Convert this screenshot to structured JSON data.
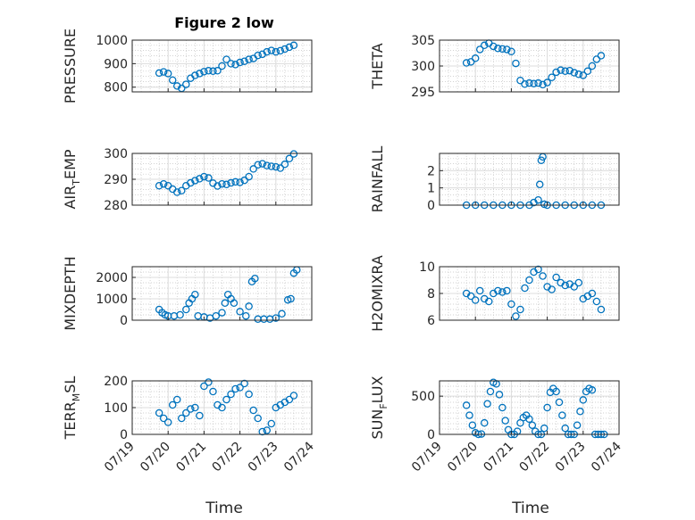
{
  "figure": {
    "title": "Figure 2 low",
    "xlabel": "Time"
  },
  "style": {
    "marker_color": "#0072bd",
    "axis_color": "#262626",
    "grid_color": "#dcdcdc"
  },
  "chart_data": [
    {
      "type": "scatter",
      "ylabel": "PRESSURE",
      "title": "Figure 2 low",
      "xlim": [
        "07/19",
        "07/24"
      ],
      "ylim": [
        780,
        1000
      ],
      "yticks": [
        800,
        900,
        1000
      ],
      "xticks": [],
      "grid": true,
      "x": [
        "07/19 18:00",
        "07/19 21:00",
        "07/20 00:00",
        "07/20 03:00",
        "07/20 06:00",
        "07/20 09:00",
        "07/20 12:00",
        "07/20 15:00",
        "07/20 18:00",
        "07/20 21:00",
        "07/21 00:00",
        "07/21 03:00",
        "07/21 06:00",
        "07/21 09:00",
        "07/21 12:00",
        "07/21 15:00",
        "07/21 18:00",
        "07/21 21:00",
        "07/22 00:00",
        "07/22 03:00",
        "07/22 06:00",
        "07/22 09:00",
        "07/22 12:00",
        "07/22 15:00",
        "07/22 18:00",
        "07/22 21:00",
        "07/23 00:00",
        "07/23 03:00",
        "07/23 06:00",
        "07/23 09:00",
        "07/23 12:00"
      ],
      "y": [
        860,
        865,
        858,
        830,
        805,
        795,
        812,
        838,
        850,
        858,
        866,
        870,
        868,
        870,
        890,
        918,
        900,
        896,
        905,
        910,
        918,
        922,
        935,
        940,
        950,
        956,
        950,
        955,
        962,
        970,
        978
      ]
    },
    {
      "type": "scatter",
      "ylabel": "THETA",
      "xlim": [
        "07/19",
        "07/24"
      ],
      "ylim": [
        295,
        305
      ],
      "yticks": [
        295,
        300,
        305
      ],
      "xticks": [],
      "grid": true,
      "x": [
        "07/19 18:00",
        "07/19 21:00",
        "07/20 00:00",
        "07/20 03:00",
        "07/20 06:00",
        "07/20 09:00",
        "07/20 12:00",
        "07/20 15:00",
        "07/20 18:00",
        "07/20 21:00",
        "07/21 00:00",
        "07/21 03:00",
        "07/21 06:00",
        "07/21 09:00",
        "07/21 12:00",
        "07/21 15:00",
        "07/21 18:00",
        "07/21 21:00",
        "07/22 00:00",
        "07/22 03:00",
        "07/22 06:00",
        "07/22 09:00",
        "07/22 12:00",
        "07/22 15:00",
        "07/22 18:00",
        "07/22 21:00",
        "07/23 00:00",
        "07/23 03:00",
        "07/23 06:00",
        "07/23 09:00",
        "07/23 12:00"
      ],
      "y": [
        300.6,
        300.8,
        301.5,
        303.2,
        304.0,
        304.4,
        303.8,
        303.4,
        303.3,
        303.2,
        302.8,
        300.5,
        297.2,
        296.5,
        296.7,
        296.6,
        296.7,
        296.4,
        296.8,
        297.8,
        298.8,
        299.2,
        299.0,
        299.1,
        298.7,
        298.4,
        298.2,
        299.0,
        300.0,
        301.3,
        302.0
      ]
    },
    {
      "type": "scatter",
      "ylabel": "AIR_TEMP",
      "ylabel_main": "AIR",
      "ylabel_sub": "T",
      "ylabel_rest": "EMP",
      "xlim": [
        "07/19",
        "07/24"
      ],
      "ylim": [
        280,
        300
      ],
      "yticks": [
        280,
        290,
        300
      ],
      "xticks": [],
      "grid": true,
      "x": [
        "07/19 18:00",
        "07/19 21:00",
        "07/20 00:00",
        "07/20 03:00",
        "07/20 06:00",
        "07/20 09:00",
        "07/20 12:00",
        "07/20 15:00",
        "07/20 18:00",
        "07/20 21:00",
        "07/21 00:00",
        "07/21 03:00",
        "07/21 06:00",
        "07/21 09:00",
        "07/21 12:00",
        "07/21 15:00",
        "07/21 18:00",
        "07/21 21:00",
        "07/22 00:00",
        "07/22 03:00",
        "07/22 06:00",
        "07/22 09:00",
        "07/22 12:00",
        "07/22 15:00",
        "07/22 18:00",
        "07/22 21:00",
        "07/23 00:00",
        "07/23 03:00",
        "07/23 06:00",
        "07/23 09:00",
        "07/23 12:00"
      ],
      "y": [
        287.5,
        288.2,
        287.5,
        286.2,
        285.0,
        285.6,
        287.5,
        288.6,
        289.5,
        290.2,
        291.0,
        290.5,
        288.5,
        287.4,
        288.2,
        288.0,
        288.6,
        289.0,
        288.8,
        289.6,
        291.0,
        294.0,
        295.6,
        296.0,
        295.3,
        295.0,
        294.8,
        294.3,
        295.8,
        298.0,
        299.8
      ]
    },
    {
      "type": "scatter",
      "ylabel": "RAINFALL",
      "xlim": [
        "07/19",
        "07/24"
      ],
      "ylim": [
        0,
        3
      ],
      "yticks": [
        0,
        1,
        2
      ],
      "xticks": [],
      "grid": true,
      "x": [
        "07/19 18:00",
        "07/20 00:00",
        "07/20 06:00",
        "07/20 12:00",
        "07/20 18:00",
        "07/21 00:00",
        "07/21 06:00",
        "07/21 12:00",
        "07/21 15:00",
        "07/21 18:00",
        "07/21 19:00",
        "07/21 20:00",
        "07/21 21:00",
        "07/21 22:00",
        "07/22 00:00",
        "07/22 06:00",
        "07/22 12:00",
        "07/22 18:00",
        "07/23 00:00",
        "07/23 06:00",
        "07/23 12:00"
      ],
      "y": [
        0,
        0,
        0,
        0,
        0,
        0,
        0,
        0,
        0.15,
        0.3,
        1.2,
        2.6,
        2.8,
        0.05,
        0,
        0,
        0,
        0,
        0,
        0,
        0
      ]
    },
    {
      "type": "scatter",
      "ylabel": "MIXDEPTH",
      "xlim": [
        "07/19",
        "07/24"
      ],
      "ylim": [
        0,
        2500
      ],
      "yticks": [
        0,
        1000,
        2000
      ],
      "xticks": [],
      "grid": true,
      "x": [
        "07/19 18:00",
        "07/19 20:00",
        "07/19 22:00",
        "07/20 00:00",
        "07/20 04:00",
        "07/20 08:00",
        "07/20 12:00",
        "07/20 14:00",
        "07/20 16:00",
        "07/20 18:00",
        "07/20 20:00",
        "07/21 00:00",
        "07/21 04:00",
        "07/21 08:00",
        "07/21 12:00",
        "07/21 14:00",
        "07/21 16:00",
        "07/21 18:00",
        "07/21 20:00",
        "07/22 00:00",
        "07/22 04:00",
        "07/22 06:00",
        "07/22 08:00",
        "07/22 10:00",
        "07/22 12:00",
        "07/22 16:00",
        "07/22 20:00",
        "07/23 00:00",
        "07/23 04:00",
        "07/23 08:00",
        "07/23 10:00",
        "07/23 12:00",
        "07/23 14:00"
      ],
      "y": [
        500,
        350,
        250,
        200,
        200,
        250,
        500,
        800,
        1000,
        1200,
        200,
        150,
        100,
        200,
        350,
        800,
        1200,
        1000,
        800,
        400,
        200,
        650,
        1800,
        1950,
        50,
        50,
        50,
        100,
        300,
        950,
        1000,
        2200,
        2350
      ]
    },
    {
      "type": "scatter",
      "ylabel": "H2OMIXRA",
      "xlim": [
        "07/19",
        "07/24"
      ],
      "ylim": [
        6,
        10
      ],
      "yticks": [
        6,
        8,
        10
      ],
      "xticks": [],
      "grid": true,
      "x": [
        "07/19 18:00",
        "07/19 21:00",
        "07/20 00:00",
        "07/20 03:00",
        "07/20 06:00",
        "07/20 09:00",
        "07/20 12:00",
        "07/20 15:00",
        "07/20 18:00",
        "07/20 21:00",
        "07/21 00:00",
        "07/21 03:00",
        "07/21 06:00",
        "07/21 09:00",
        "07/21 12:00",
        "07/21 15:00",
        "07/21 18:00",
        "07/21 21:00",
        "07/22 00:00",
        "07/22 03:00",
        "07/22 06:00",
        "07/22 09:00",
        "07/22 12:00",
        "07/22 15:00",
        "07/22 18:00",
        "07/22 21:00",
        "07/23 00:00",
        "07/23 03:00",
        "07/23 06:00",
        "07/23 09:00",
        "07/23 12:00"
      ],
      "y": [
        8.0,
        7.8,
        7.5,
        8.2,
        7.6,
        7.4,
        8.0,
        8.2,
        8.1,
        8.2,
        7.2,
        6.3,
        6.8,
        8.4,
        9.0,
        9.6,
        9.8,
        9.3,
        8.5,
        8.3,
        9.2,
        8.8,
        8.6,
        8.7,
        8.5,
        8.8,
        7.6,
        7.8,
        8.0,
        7.4,
        6.8
      ]
    },
    {
      "type": "scatter",
      "ylabel": "TERR_MSL",
      "ylabel_main": "TERR",
      "ylabel_sub": "M",
      "ylabel_rest": "SL",
      "xlim": [
        "07/19",
        "07/24"
      ],
      "ylim": [
        0,
        200
      ],
      "yticks": [
        0,
        100,
        200
      ],
      "grid": true,
      "xticks": [
        "07/19",
        "07/20",
        "07/21",
        "07/22",
        "07/23",
        "07/24"
      ],
      "x": [
        "07/19 18:00",
        "07/19 21:00",
        "07/20 00:00",
        "07/20 03:00",
        "07/20 06:00",
        "07/20 09:00",
        "07/20 12:00",
        "07/20 15:00",
        "07/20 18:00",
        "07/20 21:00",
        "07/21 00:00",
        "07/21 03:00",
        "07/21 06:00",
        "07/21 09:00",
        "07/21 12:00",
        "07/21 15:00",
        "07/21 18:00",
        "07/21 21:00",
        "07/22 00:00",
        "07/22 03:00",
        "07/22 06:00",
        "07/22 09:00",
        "07/22 12:00",
        "07/22 15:00",
        "07/22 18:00",
        "07/22 21:00",
        "07/23 00:00",
        "07/23 03:00",
        "07/23 06:00",
        "07/23 09:00",
        "07/23 12:00"
      ],
      "y": [
        80,
        60,
        45,
        110,
        130,
        60,
        80,
        95,
        100,
        70,
        180,
        195,
        160,
        110,
        100,
        130,
        150,
        170,
        175,
        190,
        150,
        90,
        60,
        10,
        15,
        40,
        100,
        110,
        120,
        130,
        145
      ]
    },
    {
      "type": "scatter",
      "ylabel": "SUN_FLUX",
      "ylabel_main": "SUN",
      "ylabel_sub": "F",
      "ylabel_rest": "LUX",
      "xlim": [
        "07/19",
        "07/24"
      ],
      "ylim": [
        0,
        700
      ],
      "yticks": [
        0,
        500
      ],
      "grid": true,
      "xticks": [
        "07/19",
        "07/20",
        "07/21",
        "07/22",
        "07/23",
        "07/24"
      ],
      "x": [
        "07/19 18:00",
        "07/19 20:00",
        "07/19 22:00",
        "07/20 00:00",
        "07/20 02:00",
        "07/20 04:00",
        "07/20 06:00",
        "07/20 08:00",
        "07/20 10:00",
        "07/20 12:00",
        "07/20 14:00",
        "07/20 16:00",
        "07/20 18:00",
        "07/20 20:00",
        "07/20 22:00",
        "07/21 00:00",
        "07/21 02:00",
        "07/21 04:00",
        "07/21 06:00",
        "07/21 08:00",
        "07/21 10:00",
        "07/21 12:00",
        "07/21 14:00",
        "07/21 16:00",
        "07/21 18:00",
        "07/21 20:00",
        "07/21 22:00",
        "07/22 00:00",
        "07/22 02:00",
        "07/22 04:00",
        "07/22 06:00",
        "07/22 08:00",
        "07/22 10:00",
        "07/22 12:00",
        "07/22 14:00",
        "07/22 16:00",
        "07/22 18:00",
        "07/22 20:00",
        "07/22 22:00",
        "07/23 00:00",
        "07/23 02:00",
        "07/23 04:00",
        "07/23 06:00",
        "07/23 08:00",
        "07/23 10:00",
        "07/23 12:00",
        "07/23 14:00"
      ],
      "y": [
        380,
        250,
        120,
        20,
        0,
        5,
        150,
        400,
        560,
        680,
        660,
        520,
        350,
        180,
        60,
        0,
        0,
        40,
        150,
        220,
        250,
        200,
        120,
        40,
        0,
        0,
        80,
        350,
        550,
        600,
        560,
        420,
        250,
        80,
        0,
        0,
        0,
        120,
        300,
        450,
        560,
        600,
        580,
        0,
        0,
        0,
        0
      ]
    }
  ]
}
